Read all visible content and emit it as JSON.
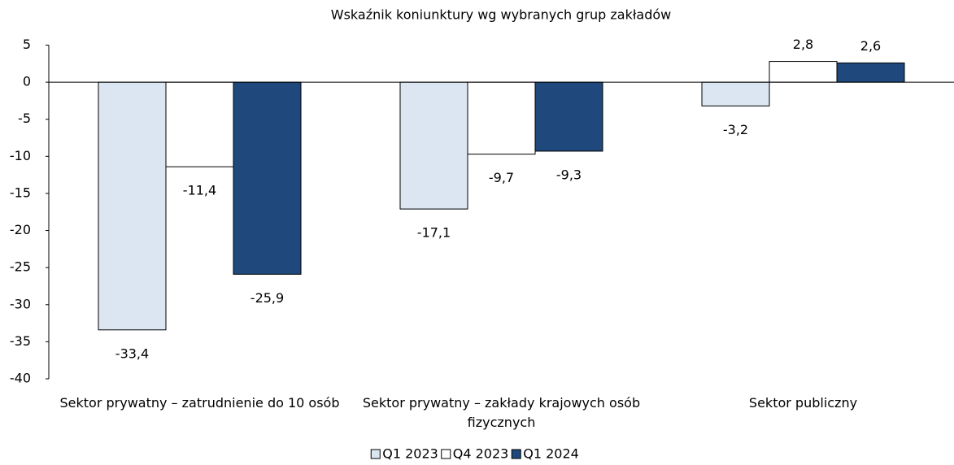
{
  "chart_data": {
    "type": "bar",
    "title": "Wskaźnik koniunktury wg wybranych grup zakładów",
    "categories": [
      "Sektor prywatny – zatrudnienie do 10 osób",
      "Sektor prywatny – zakłady krajowych osób fizycznych",
      "Sektor publiczny"
    ],
    "series": [
      {
        "name": "Q1 2023",
        "color": "#dce6f2",
        "values": [
          -33.4,
          -17.1,
          -3.2
        ],
        "value_labels": [
          "-33,4",
          "-17,1",
          "-3,2"
        ]
      },
      {
        "name": "Q4 2023",
        "color": "#ffffff",
        "values": [
          -11.4,
          -9.7,
          2.8
        ],
        "value_labels": [
          "-11,4",
          "-9,7",
          "2,8"
        ]
      },
      {
        "name": "Q1 2024",
        "color": "#1f497d",
        "values": [
          -25.9,
          -9.3,
          2.6
        ],
        "value_labels": [
          "-25,9",
          "-9,3",
          "2,6"
        ]
      }
    ],
    "ylim": [
      -40,
      5
    ],
    "yticks": [
      -40,
      -35,
      -30,
      -25,
      -20,
      -15,
      -10,
      -5,
      0,
      5
    ],
    "grid": false,
    "legend": "bottom"
  }
}
